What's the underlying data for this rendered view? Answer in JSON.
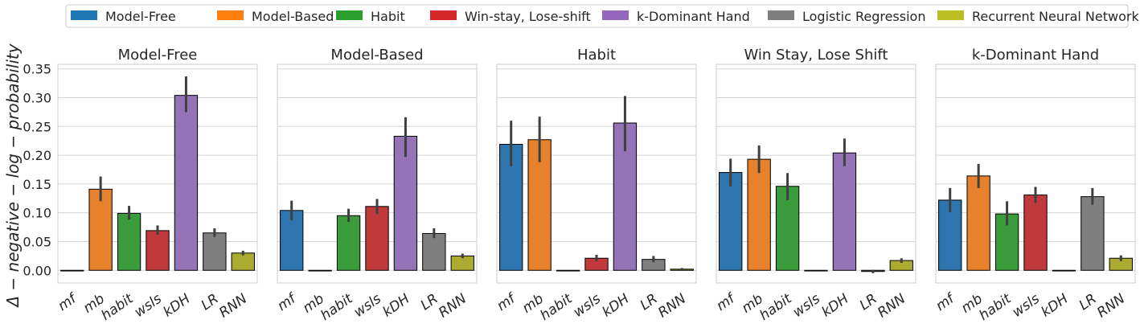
{
  "chart_data": {
    "type": "bar",
    "ylabel": "Δ − negative − log − probability",
    "ylim": [
      -0.022,
      0.358
    ],
    "yticks": [
      0.0,
      0.05,
      0.1,
      0.15,
      0.2,
      0.25,
      0.3,
      0.35
    ],
    "ytick_labels": [
      "0.00",
      "0.05",
      "0.10",
      "0.15",
      "0.20",
      "0.25",
      "0.30",
      "0.35"
    ],
    "categories": [
      "mf",
      "mb",
      "habit",
      "wsls",
      "kDH",
      "LR",
      "RNN"
    ],
    "grid": true,
    "legend_position": "top",
    "legend": [
      {
        "label": "Model-Free",
        "color": "#1f77b4"
      },
      {
        "label": "Model-Based",
        "color": "#ff7f0e"
      },
      {
        "label": "Habit",
        "color": "#2ca02c"
      },
      {
        "label": "Win-stay, Lose-shift",
        "color": "#d62728"
      },
      {
        "label": "k-Dominant Hand",
        "color": "#9467bd"
      },
      {
        "label": "Logistic Regression",
        "color": "#7f7f7f"
      },
      {
        "label": "Recurrent Neural Network",
        "color": "#bcbd22"
      }
    ],
    "bar_colors": [
      "#2e75b0",
      "#e8812b",
      "#3b9c3b",
      "#c03a3b",
      "#9473b6",
      "#7f7f7f",
      "#aaab30"
    ],
    "panels": [
      {
        "title": "Model-Free",
        "values": [
          0.0,
          0.141,
          0.099,
          0.069,
          0.304,
          0.065,
          0.03
        ],
        "ci_low": [
          0.0,
          0.12,
          0.088,
          0.062,
          0.275,
          0.058,
          0.026
        ],
        "ci_high": [
          0.0,
          0.163,
          0.112,
          0.078,
          0.337,
          0.073,
          0.034
        ]
      },
      {
        "title": "Model-Based",
        "values": [
          0.104,
          0.0,
          0.095,
          0.111,
          0.233,
          0.064,
          0.025
        ],
        "ci_low": [
          0.087,
          0.0,
          0.084,
          0.098,
          0.197,
          0.056,
          0.021
        ],
        "ci_high": [
          0.121,
          0.0,
          0.107,
          0.124,
          0.266,
          0.073,
          0.029
        ]
      },
      {
        "title": "Habit",
        "values": [
          0.219,
          0.227,
          0.0,
          0.021,
          0.256,
          0.019,
          0.002
        ],
        "ci_low": [
          0.181,
          0.188,
          0.0,
          0.016,
          0.207,
          0.014,
          -0.001
        ],
        "ci_high": [
          0.26,
          0.267,
          0.0,
          0.027,
          0.303,
          0.025,
          0.004
        ]
      },
      {
        "title": "Win Stay, Lose Shift",
        "values": [
          0.17,
          0.193,
          0.146,
          0.0,
          0.204,
          -0.002,
          0.017
        ],
        "ci_low": [
          0.146,
          0.169,
          0.122,
          0.0,
          0.181,
          -0.005,
          0.013
        ],
        "ci_high": [
          0.194,
          0.217,
          0.169,
          0.0,
          0.229,
          0.001,
          0.021
        ]
      },
      {
        "title": "k-Dominant Hand",
        "values": [
          0.122,
          0.164,
          0.098,
          0.131,
          0.0,
          0.128,
          0.021
        ],
        "ci_low": [
          0.101,
          0.143,
          0.078,
          0.117,
          0.0,
          0.114,
          0.016
        ],
        "ci_high": [
          0.143,
          0.185,
          0.12,
          0.145,
          0.0,
          0.143,
          0.026
        ]
      }
    ]
  }
}
